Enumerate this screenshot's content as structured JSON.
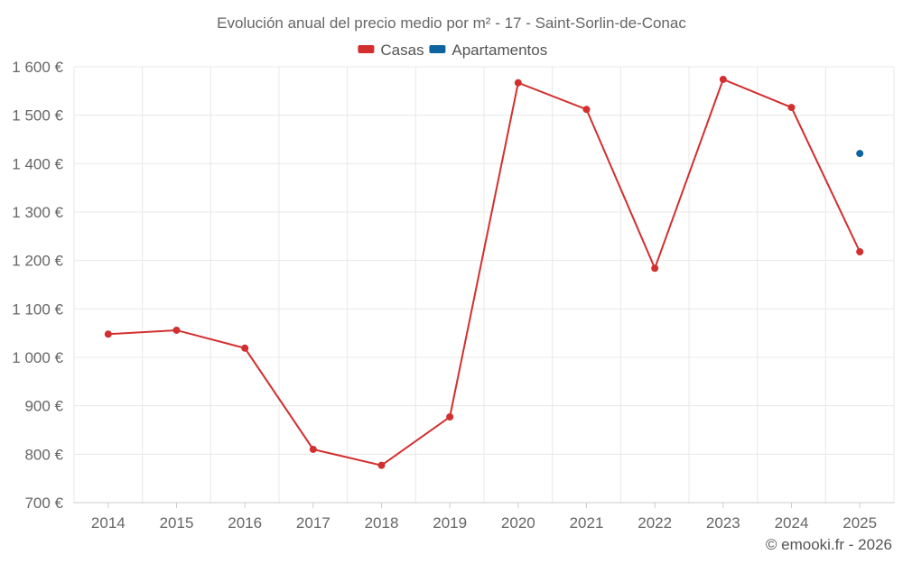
{
  "chart_data": {
    "type": "line",
    "title": "Evolución anual del precio medio por m² - 17 - Saint-Sorlin-de-Conac",
    "x": [
      "2014",
      "2015",
      "2016",
      "2017",
      "2018",
      "2019",
      "2020",
      "2021",
      "2022",
      "2023",
      "2024",
      "2025"
    ],
    "series": [
      {
        "name": "Casas",
        "color": "#d32f2f",
        "values": [
          1048,
          1056,
          1019,
          810,
          777,
          877,
          1567,
          1512,
          1184,
          1574,
          1516,
          1218
        ]
      },
      {
        "name": "Apartamentos",
        "color": "#0d64a0",
        "values": [
          null,
          null,
          null,
          null,
          null,
          null,
          null,
          null,
          null,
          null,
          null,
          1421
        ]
      }
    ],
    "ylim": [
      700,
      1600
    ],
    "yticks": [
      700,
      800,
      900,
      1000,
      1100,
      1200,
      1300,
      1400,
      1500,
      1600
    ],
    "ytick_labels": [
      "700 €",
      "800 €",
      "900 €",
      "1 000 €",
      "1 100 €",
      "1 200 €",
      "1 300 €",
      "1 400 €",
      "1 500 €",
      "1 600 €"
    ],
    "grid": true,
    "legend_position": "top-center",
    "xlabel": "",
    "ylabel": ""
  },
  "credit": "© emooki.fr - 2026"
}
